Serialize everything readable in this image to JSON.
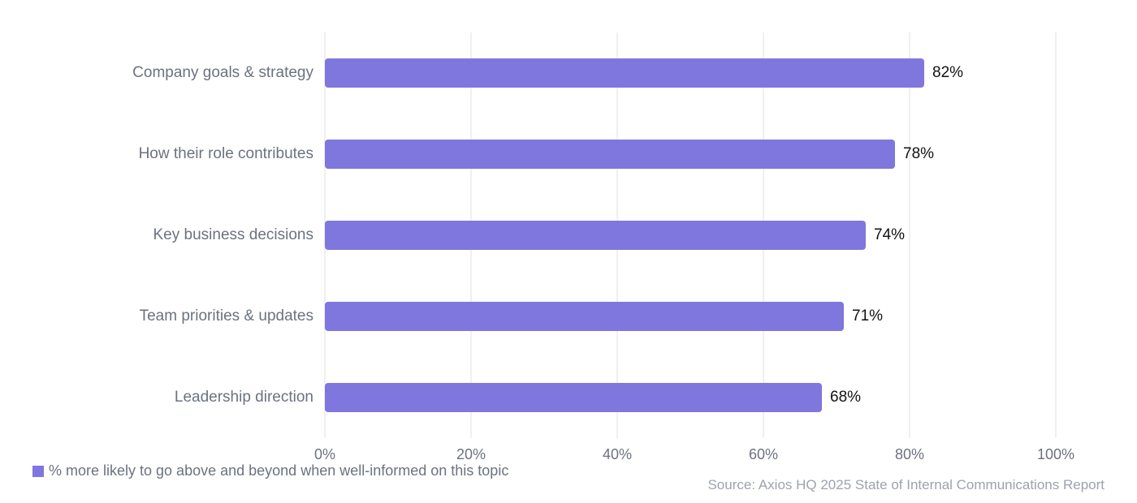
{
  "chart_data": {
    "type": "bar",
    "orientation": "horizontal",
    "categories": [
      "Company goals & strategy",
      "How their role contributes",
      "Key business decisions",
      "Team priorities & updates",
      "Leadership direction"
    ],
    "series": [
      {
        "name": "% more likely to go above and beyond when well-informed on this topic",
        "values": [
          82,
          78,
          74,
          71,
          68
        ],
        "color": "#7f77dd"
      }
    ],
    "value_labels": [
      "82%",
      "78%",
      "74%",
      "71%",
      "68%"
    ],
    "title": "",
    "xlabel": "",
    "ylabel": "",
    "xlim": [
      0,
      100
    ],
    "x_ticks": [
      "0%",
      "20%",
      "40%",
      "60%",
      "80%",
      "100%"
    ],
    "grid": true,
    "legend_position": "bottom-left",
    "annotation": "Source: Axios HQ 2025 State of Internal Communications Report"
  },
  "legend": {
    "label": "% more likely to go above and beyond when well-informed on this topic",
    "color": "#7f77dd"
  },
  "source": "Source: Axios HQ 2025 State of Internal Communications Report"
}
